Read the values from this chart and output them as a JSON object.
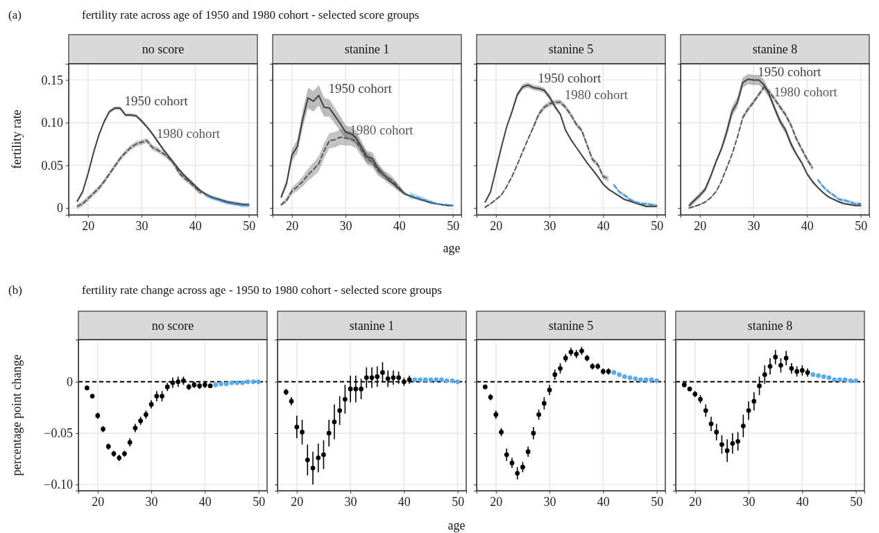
{
  "chart_data": [
    {
      "type": "line",
      "title": "no score",
      "ylabel": "fertility rate",
      "annotations": [
        "(a)",
        "fertility rate across age of 1950 and 1980 cohort - selected score groups"
      ],
      "xlim": [
        16.4,
        51.6
      ],
      "ylim": [
        -0.008,
        0.169
      ],
      "xticks": [
        20,
        30,
        40,
        50
      ],
      "yticks": [
        0,
        0.05,
        {
          "value": 0.1,
          "label": "0.10"
        },
        0.15
      ],
      "grid": true,
      "series": [
        {
          "name": "1950 cohort",
          "color": "#404040",
          "line_style": "solid",
          "x": [
            18,
            19,
            20,
            21,
            22,
            23,
            24,
            25,
            26,
            27,
            28,
            29,
            30,
            31,
            32,
            33,
            34,
            35,
            36,
            37,
            38,
            39,
            40,
            41,
            42,
            43,
            44,
            45,
            46,
            47,
            48,
            49,
            50
          ],
          "values": [
            0.008,
            0.019,
            0.04,
            0.064,
            0.085,
            0.101,
            0.113,
            0.117,
            0.117,
            0.109,
            0.109,
            0.108,
            0.102,
            0.095,
            0.087,
            0.078,
            0.069,
            0.061,
            0.053,
            0.045,
            0.038,
            0.032,
            0.026,
            0.02,
            0.016,
            0.013,
            0.011,
            0.009,
            0.007,
            0.006,
            0.005,
            0.004,
            0.004
          ],
          "lower": [
            0.006,
            0.017,
            0.038,
            0.062,
            0.083,
            0.099,
            0.111,
            0.115,
            0.115,
            0.107,
            0.107,
            0.106,
            0.1,
            0.093,
            0.085,
            0.076,
            0.067,
            0.059,
            0.051,
            0.043,
            0.036,
            0.03,
            0.024,
            0.018,
            0.014,
            0.011,
            0.009,
            0.007,
            0.005,
            0.004,
            0.003,
            0.002,
            0.002
          ],
          "upper": [
            0.01,
            0.021,
            0.042,
            0.066,
            0.087,
            0.103,
            0.115,
            0.119,
            0.119,
            0.111,
            0.111,
            0.11,
            0.104,
            0.097,
            0.089,
            0.08,
            0.071,
            0.063,
            0.055,
            0.047,
            0.04,
            0.034,
            0.028,
            0.022,
            0.018,
            0.015,
            0.013,
            0.011,
            0.009,
            0.008,
            0.007,
            0.006,
            0.006
          ]
        },
        {
          "name": "1980 cohort",
          "color": "#555555",
          "line_style": "dashed",
          "x": [
            18,
            19,
            20,
            21,
            22,
            23,
            24,
            25,
            26,
            27,
            28,
            29,
            30,
            31,
            32,
            33,
            34,
            35,
            36,
            37,
            38,
            39,
            40,
            41
          ],
          "values": [
            0.002,
            0.005,
            0.011,
            0.017,
            0.023,
            0.031,
            0.04,
            0.049,
            0.058,
            0.065,
            0.071,
            0.075,
            0.077,
            0.079,
            0.071,
            0.068,
            0.064,
            0.059,
            0.052,
            0.041,
            0.035,
            0.03,
            0.024,
            0.018
          ],
          "lower": [
            -0.001,
            0.002,
            0.008,
            0.014,
            0.02,
            0.028,
            0.037,
            0.046,
            0.055,
            0.062,
            0.068,
            0.072,
            0.074,
            0.076,
            0.068,
            0.065,
            0.061,
            0.056,
            0.049,
            0.038,
            0.032,
            0.027,
            0.021,
            0.015
          ],
          "upper": [
            0.005,
            0.008,
            0.014,
            0.02,
            0.026,
            0.034,
            0.043,
            0.052,
            0.061,
            0.068,
            0.074,
            0.078,
            0.08,
            0.082,
            0.074,
            0.071,
            0.067,
            0.062,
            0.055,
            0.044,
            0.038,
            0.033,
            0.027,
            0.021
          ]
        },
        {
          "color": "#3d8fd6",
          "line_style": "dashed",
          "x": [
            42,
            43,
            44,
            45,
            46,
            47,
            48,
            49,
            50
          ],
          "values": [
            0.015,
            0.012,
            0.01,
            0.008,
            0.006,
            0.005,
            0.004,
            0.003,
            0.003
          ],
          "lower": [
            0.013,
            0.01,
            0.008,
            0.006,
            0.004,
            0.003,
            0.002,
            0.001,
            0.001
          ],
          "upper": [
            0.017,
            0.014,
            0.012,
            0.01,
            0.008,
            0.007,
            0.006,
            0.005,
            0.005
          ]
        }
      ]
    },
    {
      "type": "line",
      "title": "stanine 1",
      "xlabel": "age",
      "xlim": [
        16.4,
        51.6
      ],
      "ylim": [
        -0.008,
        0.169
      ],
      "xticks": [
        20,
        30,
        40,
        50
      ],
      "yticks": [
        0,
        0.05,
        0.1,
        0.15
      ],
      "grid": true,
      "tick_labels": "x",
      "series": [
        {
          "name": "1950 cohort",
          "color": "#404040",
          "line_style": "solid",
          "x": [
            18,
            19,
            20,
            21,
            22,
            23,
            24,
            25,
            26,
            27,
            28,
            29,
            30,
            31,
            32,
            33,
            34,
            35,
            36,
            37,
            38,
            39,
            40,
            41,
            42,
            43,
            44,
            45,
            46,
            47,
            48,
            49,
            50
          ],
          "values": [
            0.013,
            0.029,
            0.062,
            0.072,
            0.104,
            0.129,
            0.125,
            0.132,
            0.118,
            0.117,
            0.108,
            0.099,
            0.089,
            0.087,
            0.082,
            0.071,
            0.06,
            0.058,
            0.047,
            0.04,
            0.033,
            0.028,
            0.022,
            0.017,
            0.014,
            0.012,
            0.01,
            0.008,
            0.006,
            0.005,
            0.004,
            0.003,
            0.003
          ],
          "lower": [
            0.01,
            0.025,
            0.055,
            0.064,
            0.094,
            0.117,
            0.113,
            0.12,
            0.107,
            0.107,
            0.099,
            0.09,
            0.081,
            0.079,
            0.074,
            0.064,
            0.053,
            0.051,
            0.041,
            0.035,
            0.029,
            0.024,
            0.019,
            0.015,
            0.013,
            0.011,
            0.009,
            0.007,
            0.005,
            0.004,
            0.003,
            0.002,
            0.002
          ],
          "upper": [
            0.016,
            0.033,
            0.069,
            0.08,
            0.114,
            0.141,
            0.137,
            0.144,
            0.129,
            0.127,
            0.117,
            0.108,
            0.097,
            0.095,
            0.09,
            0.078,
            0.067,
            0.065,
            0.053,
            0.045,
            0.037,
            0.032,
            0.025,
            0.019,
            0.015,
            0.013,
            0.011,
            0.009,
            0.007,
            0.006,
            0.005,
            0.004,
            0.004
          ]
        },
        {
          "name": "1980 cohort",
          "color": "#555555",
          "line_style": "dashed",
          "x": [
            18,
            19,
            20,
            21,
            22,
            23,
            24,
            25,
            26,
            27,
            28,
            29,
            30,
            31,
            32,
            33,
            34,
            35,
            36,
            37,
            38,
            39,
            40,
            41
          ],
          "values": [
            0.004,
            0.009,
            0.02,
            0.025,
            0.031,
            0.039,
            0.045,
            0.052,
            0.067,
            0.079,
            0.08,
            0.083,
            0.082,
            0.081,
            0.078,
            0.067,
            0.058,
            0.054,
            0.044,
            0.039,
            0.036,
            0.031,
            0.024,
            0.017
          ],
          "lower": [
            0.002,
            0.006,
            0.016,
            0.02,
            0.025,
            0.032,
            0.037,
            0.043,
            0.058,
            0.07,
            0.071,
            0.074,
            0.073,
            0.073,
            0.07,
            0.06,
            0.051,
            0.048,
            0.038,
            0.034,
            0.031,
            0.027,
            0.021,
            0.015
          ],
          "upper": [
            0.006,
            0.012,
            0.024,
            0.03,
            0.037,
            0.046,
            0.053,
            0.061,
            0.076,
            0.088,
            0.089,
            0.092,
            0.091,
            0.089,
            0.086,
            0.074,
            0.065,
            0.06,
            0.05,
            0.044,
            0.041,
            0.035,
            0.027,
            0.019
          ]
        },
        {
          "color": "#3d8fd6",
          "line_style": "dashed",
          "x": [
            42,
            43,
            44,
            45,
            46,
            47,
            48,
            49,
            50
          ],
          "values": [
            0.015,
            0.013,
            0.011,
            0.009,
            0.007,
            0.005,
            0.004,
            0.004,
            0.003
          ],
          "lower": [
            0.011,
            0.01,
            0.008,
            0.007,
            0.005,
            0.004,
            0.003,
            0.003,
            0.002
          ],
          "upper": [
            0.019,
            0.016,
            0.014,
            0.011,
            0.009,
            0.006,
            0.005,
            0.005,
            0.004
          ]
        }
      ]
    },
    {
      "type": "line",
      "title": "stanine 5",
      "xlim": [
        16.4,
        51.6
      ],
      "ylim": [
        -0.008,
        0.169
      ],
      "xticks": [
        20,
        30,
        40,
        50
      ],
      "yticks": [
        0,
        0.05,
        0.1,
        0.15
      ],
      "grid": true,
      "tick_labels": "x",
      "series": [
        {
          "name": "1950 cohort",
          "color": "#404040",
          "line_style": "solid",
          "x": [
            18,
            19,
            20,
            21,
            22,
            23,
            24,
            25,
            26,
            27,
            28,
            29,
            30,
            31,
            32,
            33,
            34,
            35,
            36,
            37,
            38,
            39,
            40,
            41,
            42,
            43,
            44,
            45,
            46,
            47,
            48,
            49,
            50
          ],
          "values": [
            0.007,
            0.019,
            0.045,
            0.071,
            0.095,
            0.113,
            0.133,
            0.142,
            0.144,
            0.141,
            0.14,
            0.138,
            0.13,
            0.119,
            0.11,
            0.091,
            0.08,
            0.071,
            0.062,
            0.053,
            0.045,
            0.037,
            0.028,
            0.022,
            0.018,
            0.014,
            0.01,
            0.008,
            0.006,
            0.004,
            0.002,
            0.002,
            0.002
          ],
          "lower": [
            0.006,
            0.018,
            0.044,
            0.07,
            0.094,
            0.11,
            0.13,
            0.139,
            0.141,
            0.138,
            0.137,
            0.135,
            0.127,
            0.116,
            0.109,
            0.09,
            0.079,
            0.07,
            0.061,
            0.052,
            0.044,
            0.036,
            0.027,
            0.021,
            0.017,
            0.013,
            0.009,
            0.007,
            0.005,
            0.003,
            0.001,
            0.001,
            0.001
          ],
          "upper": [
            0.008,
            0.02,
            0.046,
            0.072,
            0.096,
            0.116,
            0.136,
            0.145,
            0.147,
            0.144,
            0.143,
            0.141,
            0.133,
            0.122,
            0.111,
            0.092,
            0.081,
            0.072,
            0.063,
            0.054,
            0.046,
            0.038,
            0.029,
            0.023,
            0.019,
            0.015,
            0.011,
            0.009,
            0.007,
            0.005,
            0.003,
            0.003,
            0.003
          ]
        },
        {
          "name": "1980 cohort",
          "color": "#555555",
          "line_style": "dashed",
          "x": [
            18,
            19,
            20,
            21,
            22,
            23,
            24,
            25,
            26,
            27,
            28,
            29,
            30,
            31,
            32,
            33,
            34,
            35,
            36,
            37,
            38,
            39,
            40,
            41
          ],
          "values": [
            0.001,
            0.005,
            0.01,
            0.015,
            0.025,
            0.037,
            0.051,
            0.066,
            0.081,
            0.095,
            0.11,
            0.118,
            0.122,
            0.124,
            0.124,
            0.118,
            0.109,
            0.098,
            0.091,
            0.074,
            0.057,
            0.051,
            0.037,
            0.034
          ],
          "lower": [
            0.0,
            0.004,
            0.009,
            0.014,
            0.024,
            0.036,
            0.05,
            0.065,
            0.08,
            0.092,
            0.107,
            0.115,
            0.119,
            0.121,
            0.121,
            0.115,
            0.106,
            0.095,
            0.088,
            0.071,
            0.054,
            0.048,
            0.034,
            0.031
          ],
          "upper": [
            0.002,
            0.006,
            0.011,
            0.016,
            0.026,
            0.038,
            0.052,
            0.067,
            0.082,
            0.098,
            0.113,
            0.121,
            0.125,
            0.127,
            0.127,
            0.121,
            0.112,
            0.101,
            0.094,
            0.077,
            0.06,
            0.054,
            0.04,
            0.037
          ]
        },
        {
          "color": "#3d8fd6",
          "line_style": "dashed",
          "x": [
            42,
            43,
            44,
            45,
            46,
            47,
            48,
            49,
            50
          ],
          "values": [
            0.027,
            0.019,
            0.015,
            0.01,
            0.007,
            0.005,
            0.005,
            0.004,
            0.003
          ],
          "lower": [
            0.025,
            0.017,
            0.013,
            0.008,
            0.005,
            0.003,
            0.003,
            0.002,
            0.001
          ],
          "upper": [
            0.029,
            0.021,
            0.017,
            0.012,
            0.009,
            0.007,
            0.007,
            0.006,
            0.005
          ]
        }
      ]
    },
    {
      "type": "line",
      "title": "stanine 8",
      "xlim": [
        16.4,
        51.6
      ],
      "ylim": [
        -0.008,
        0.169
      ],
      "xticks": [
        20,
        30,
        40,
        50
      ],
      "yticks": [
        0,
        0.05,
        0.1,
        0.15
      ],
      "grid": true,
      "tick_labels": "x",
      "series": [
        {
          "name": "1950 cohort",
          "color": "#404040",
          "line_style": "solid",
          "x": [
            18,
            19,
            20,
            21,
            22,
            23,
            24,
            25,
            26,
            27,
            28,
            29,
            30,
            31,
            32,
            33,
            34,
            35,
            36,
            37,
            38,
            39,
            40,
            41,
            42,
            43,
            44,
            45,
            46,
            47,
            48,
            49,
            50
          ],
          "values": [
            0.003,
            0.009,
            0.015,
            0.022,
            0.037,
            0.054,
            0.069,
            0.089,
            0.113,
            0.124,
            0.147,
            0.151,
            0.15,
            0.15,
            0.144,
            0.132,
            0.116,
            0.101,
            0.091,
            0.075,
            0.063,
            0.053,
            0.04,
            0.031,
            0.024,
            0.018,
            0.013,
            0.01,
            0.007,
            0.005,
            0.004,
            0.003,
            0.003
          ],
          "lower": [
            0.0,
            0.006,
            0.012,
            0.019,
            0.034,
            0.051,
            0.066,
            0.083,
            0.107,
            0.118,
            0.141,
            0.145,
            0.144,
            0.144,
            0.138,
            0.128,
            0.112,
            0.097,
            0.087,
            0.071,
            0.061,
            0.051,
            0.038,
            0.029,
            0.023,
            0.017,
            0.012,
            0.009,
            0.006,
            0.004,
            0.003,
            0.002,
            0.002
          ],
          "upper": [
            0.006,
            0.012,
            0.018,
            0.025,
            0.04,
            0.057,
            0.072,
            0.095,
            0.119,
            0.13,
            0.153,
            0.157,
            0.156,
            0.156,
            0.15,
            0.136,
            0.12,
            0.105,
            0.095,
            0.079,
            0.065,
            0.055,
            0.042,
            0.033,
            0.025,
            0.019,
            0.014,
            0.011,
            0.008,
            0.006,
            0.005,
            0.004,
            0.004
          ]
        },
        {
          "name": "1980 cohort",
          "color": "#555555",
          "line_style": "dashed",
          "x": [
            18,
            19,
            20,
            21,
            22,
            23,
            24,
            25,
            26,
            27,
            28,
            29,
            30,
            31,
            32,
            33,
            34,
            35,
            36,
            37,
            38,
            39,
            40,
            41
          ],
          "values": [
            0.0,
            0.002,
            0.004,
            0.007,
            0.012,
            0.019,
            0.031,
            0.047,
            0.063,
            0.083,
            0.106,
            0.116,
            0.124,
            0.133,
            0.142,
            0.136,
            0.127,
            0.118,
            0.109,
            0.097,
            0.081,
            0.069,
            0.057,
            0.047
          ],
          "lower": [
            -0.001,
            0.001,
            0.003,
            0.006,
            0.011,
            0.018,
            0.03,
            0.046,
            0.062,
            0.082,
            0.103,
            0.113,
            0.121,
            0.13,
            0.139,
            0.133,
            0.124,
            0.115,
            0.106,
            0.094,
            0.078,
            0.066,
            0.054,
            0.044
          ],
          "upper": [
            0.001,
            0.003,
            0.005,
            0.008,
            0.013,
            0.02,
            0.032,
            0.048,
            0.064,
            0.084,
            0.109,
            0.119,
            0.127,
            0.136,
            0.145,
            0.139,
            0.13,
            0.121,
            0.112,
            0.1,
            0.084,
            0.072,
            0.06,
            0.05
          ]
        },
        {
          "color": "#3d8fd6",
          "line_style": "dashed",
          "x": [
            42,
            43,
            44,
            45,
            46,
            47,
            48,
            49,
            50
          ],
          "values": [
            0.033,
            0.025,
            0.019,
            0.015,
            0.01,
            0.009,
            0.007,
            0.005,
            0.005
          ],
          "lower": [
            0.031,
            0.023,
            0.017,
            0.013,
            0.008,
            0.007,
            0.005,
            0.003,
            0.003
          ],
          "upper": [
            0.035,
            0.027,
            0.021,
            0.017,
            0.012,
            0.011,
            0.009,
            0.007,
            0.007
          ]
        }
      ]
    },
    {
      "type": "scatter",
      "title": "no score",
      "ylabel": "percentage point change",
      "annotations": [
        "(b)",
        "fertility rate change across age - 1950 to 1980 cohort - selected score groups"
      ],
      "xlim": [
        16.4,
        51.6
      ],
      "ylim": [
        -0.106,
        0.041
      ],
      "xticks": [
        20,
        30,
        40,
        50
      ],
      "yticks": [
        {
          "value": -0.1,
          "label": "−0.10"
        },
        {
          "value": -0.05,
          "label": "−0.05"
        },
        0
      ],
      "grid": true,
      "marker": "circle",
      "ref_lines": [
        {
          "axis": "y",
          "value": 0,
          "color": "#000000",
          "line_style": "dashed"
        }
      ],
      "series": [
        {
          "color": "#000000",
          "x": [
            18,
            19,
            20,
            21,
            22,
            23,
            24,
            25,
            26,
            27,
            28,
            29,
            30,
            31,
            32,
            33,
            34,
            35,
            36,
            37,
            38,
            39,
            40,
            41
          ],
          "values": [
            -0.006,
            -0.014,
            -0.033,
            -0.046,
            -0.063,
            -0.07,
            -0.074,
            -0.07,
            -0.059,
            -0.045,
            -0.038,
            -0.032,
            -0.022,
            -0.014,
            -0.014,
            -0.005,
            -0.001,
            0.0,
            0.001,
            -0.005,
            -0.003,
            -0.004,
            -0.003,
            -0.004
          ],
          "errors": [
            0.002,
            0.002,
            0.003,
            0.003,
            0.003,
            0.003,
            0.003,
            0.003,
            0.004,
            0.004,
            0.004,
            0.004,
            0.004,
            0.005,
            0.005,
            0.004,
            0.005,
            0.005,
            0.004,
            0.003,
            0.003,
            0.003,
            0.003,
            0.002
          ]
        },
        {
          "color": "#5aaaee",
          "x": [
            42,
            43,
            44,
            45,
            46,
            47,
            48,
            49,
            50
          ],
          "values": [
            -0.003,
            -0.002,
            -0.002,
            -0.001,
            -0.001,
            -0.001,
            0.0,
            0.0,
            0.0
          ]
        }
      ]
    },
    {
      "type": "scatter",
      "title": "stanine 1",
      "xlabel": "age",
      "xlim": [
        16.4,
        51.6
      ],
      "ylim": [
        -0.106,
        0.041
      ],
      "xticks": [
        20,
        30,
        40,
        50
      ],
      "yticks": [
        -0.1,
        -0.05,
        0
      ],
      "grid": true,
      "tick_labels": "x",
      "marker": "circle",
      "ref_lines": [
        {
          "axis": "y",
          "value": 0,
          "color": "#000000",
          "line_style": "dashed"
        }
      ],
      "series": [
        {
          "color": "#000000",
          "x": [
            18,
            19,
            20,
            21,
            22,
            23,
            24,
            25,
            26,
            27,
            28,
            29,
            30,
            31,
            32,
            33,
            34,
            35,
            36,
            37,
            38,
            39,
            40,
            41
          ],
          "values": [
            -0.01,
            -0.019,
            -0.044,
            -0.049,
            -0.076,
            -0.084,
            -0.074,
            -0.071,
            -0.05,
            -0.039,
            -0.028,
            -0.017,
            -0.007,
            -0.007,
            -0.007,
            0.004,
            0.004,
            0.005,
            0.009,
            0.003,
            0.004,
            0.004,
            0.0,
            0.002
          ],
          "errors": [
            0.003,
            0.004,
            0.011,
            0.012,
            0.015,
            0.016,
            0.014,
            0.014,
            0.013,
            0.017,
            0.014,
            0.014,
            0.013,
            0.013,
            0.01,
            0.01,
            0.01,
            0.01,
            0.01,
            0.008,
            0.007,
            0.006,
            0.004,
            0.004
          ]
        },
        {
          "color": "#5aaaee",
          "x": [
            42,
            43,
            44,
            45,
            46,
            47,
            48,
            49,
            50
          ],
          "values": [
            0.002,
            0.002,
            0.002,
            0.002,
            0.002,
            0.002,
            0.001,
            0.001,
            0.0
          ]
        }
      ]
    },
    {
      "type": "scatter",
      "title": "stanine 5",
      "xlim": [
        16.4,
        51.6
      ],
      "ylim": [
        -0.106,
        0.041
      ],
      "xticks": [
        20,
        30,
        40,
        50
      ],
      "yticks": [
        -0.1,
        -0.05,
        0
      ],
      "grid": true,
      "tick_labels": "x",
      "marker": "circle",
      "ref_lines": [
        {
          "axis": "y",
          "value": 0,
          "color": "#000000",
          "line_style": "dashed"
        }
      ],
      "series": [
        {
          "color": "#000000",
          "x": [
            18,
            19,
            20,
            21,
            22,
            23,
            24,
            25,
            26,
            27,
            28,
            29,
            30,
            31,
            32,
            33,
            34,
            35,
            36,
            37,
            38,
            39,
            40,
            41
          ],
          "values": [
            -0.005,
            -0.015,
            -0.032,
            -0.049,
            -0.071,
            -0.079,
            -0.089,
            -0.083,
            -0.068,
            -0.05,
            -0.032,
            -0.021,
            -0.008,
            0.007,
            0.013,
            0.023,
            0.029,
            0.027,
            0.03,
            0.023,
            0.015,
            0.015,
            0.01,
            0.01
          ],
          "errors": [
            0.002,
            0.003,
            0.004,
            0.004,
            0.006,
            0.005,
            0.006,
            0.005,
            0.005,
            0.006,
            0.005,
            0.006,
            0.005,
            0.005,
            0.005,
            0.004,
            0.004,
            0.004,
            0.004,
            0.003,
            0.003,
            0.003,
            0.003,
            0.003
          ]
        },
        {
          "color": "#5aaaee",
          "x": [
            42,
            43,
            44,
            45,
            46,
            47,
            48,
            49,
            50
          ],
          "values": [
            0.009,
            0.007,
            0.005,
            0.004,
            0.003,
            0.002,
            0.002,
            0.002,
            0.001
          ]
        }
      ]
    },
    {
      "type": "scatter",
      "title": "stanine 8",
      "xlim": [
        16.4,
        51.6
      ],
      "ylim": [
        -0.106,
        0.041
      ],
      "xticks": [
        20,
        30,
        40,
        50
      ],
      "yticks": [
        -0.1,
        -0.05,
        0
      ],
      "grid": true,
      "tick_labels": "x",
      "marker": "circle",
      "ref_lines": [
        {
          "axis": "y",
          "value": 0,
          "color": "#000000",
          "line_style": "dashed"
        }
      ],
      "series": [
        {
          "color": "#000000",
          "x": [
            18,
            19,
            20,
            21,
            22,
            23,
            24,
            25,
            26,
            27,
            28,
            29,
            30,
            31,
            32,
            33,
            34,
            35,
            36,
            37,
            38,
            39,
            40,
            41
          ],
          "values": [
            -0.003,
            -0.007,
            -0.012,
            -0.017,
            -0.028,
            -0.041,
            -0.049,
            -0.061,
            -0.067,
            -0.06,
            -0.058,
            -0.043,
            -0.028,
            -0.019,
            -0.004,
            0.007,
            0.015,
            0.024,
            0.016,
            0.023,
            0.013,
            0.01,
            0.011,
            0.009
          ],
          "errors": [
            0.002,
            0.002,
            0.003,
            0.004,
            0.006,
            0.007,
            0.008,
            0.009,
            0.011,
            0.01,
            0.009,
            0.011,
            0.009,
            0.009,
            0.009,
            0.009,
            0.008,
            0.007,
            0.007,
            0.007,
            0.005,
            0.005,
            0.005,
            0.004
          ]
        },
        {
          "color": "#5aaaee",
          "x": [
            42,
            43,
            44,
            45,
            46,
            47,
            48,
            49,
            50
          ],
          "values": [
            0.007,
            0.006,
            0.005,
            0.004,
            0.002,
            0.002,
            0.002,
            0.001,
            0.001
          ]
        }
      ]
    }
  ]
}
